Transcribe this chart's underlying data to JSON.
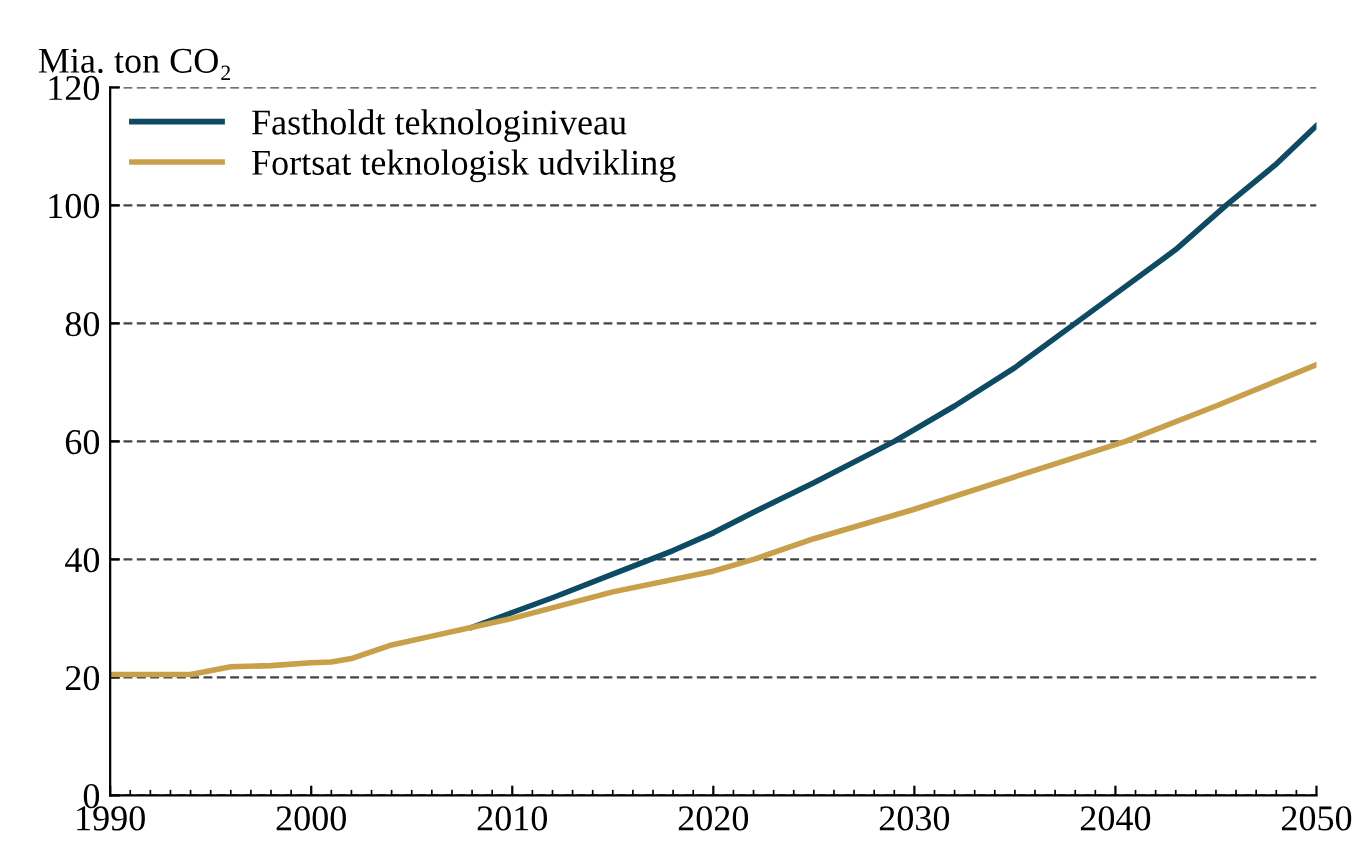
{
  "chart_data": {
    "type": "line",
    "ylabel": "Mia. ton CO₂",
    "xlim": [
      1990,
      2050
    ],
    "xticks": [
      1990,
      2000,
      2010,
      2020,
      2030,
      2040,
      2050
    ],
    "ylim": [
      0,
      120
    ],
    "yticks": [
      0,
      20,
      40,
      60,
      80,
      100,
      120
    ],
    "grid": "y",
    "legend": "top left",
    "marker": "none",
    "line_style": "solid",
    "series": [
      {
        "name": "Fastholdt teknologiniveau",
        "color": "#0d4a63",
        "x": [
          2008,
          2010,
          2012,
          2015,
          2018,
          2020,
          2022,
          2025,
          2029,
          2032,
          2035,
          2038,
          2040,
          2043,
          2045.5,
          2048,
          2050
        ],
        "values": [
          28.5,
          31,
          33.5,
          37.5,
          41.5,
          44.5,
          48,
          53,
          60,
          66,
          72.5,
          80,
          85,
          92.5,
          100,
          107,
          113.5
        ]
      },
      {
        "name": "Fortsat teknologisk udvikling",
        "color": "#c9a04a",
        "x": [
          1990,
          1994,
          1996,
          1998,
          2000,
          2001,
          2002,
          2004,
          2006,
          2008,
          2010,
          2015,
          2020,
          2022,
          2025,
          2030,
          2035,
          2040.5,
          2045,
          2050
        ],
        "values": [
          20.5,
          20.5,
          21.8,
          22,
          22.5,
          22.6,
          23.2,
          25.5,
          27,
          28.5,
          30,
          34.5,
          38,
          40,
          43.5,
          48.5,
          54,
          60,
          66,
          73
        ]
      }
    ]
  }
}
